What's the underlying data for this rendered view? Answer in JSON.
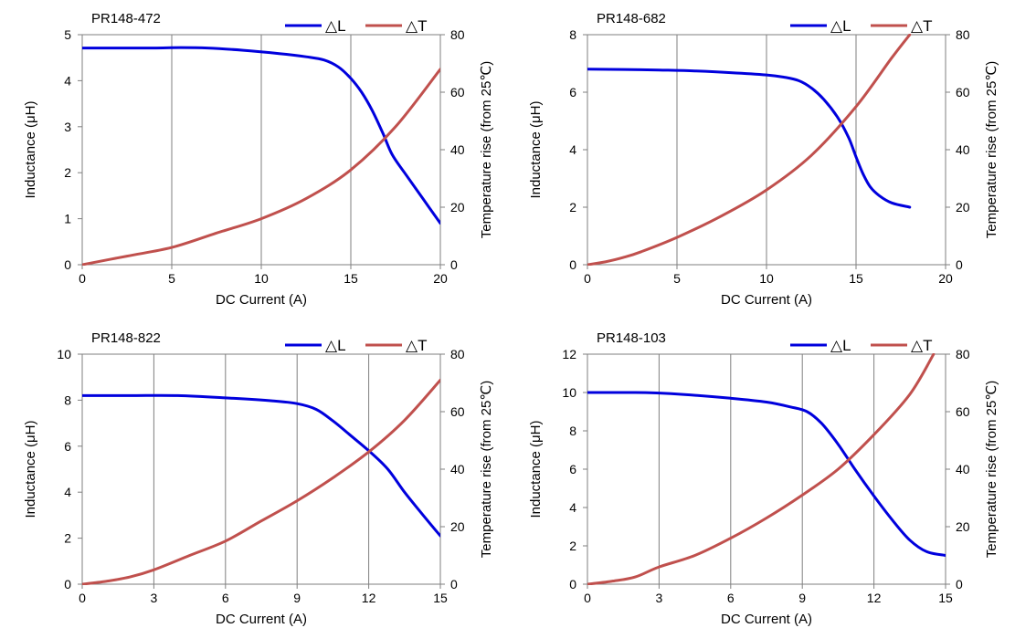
{
  "chart_data": [
    {
      "type": "line",
      "title": "PR148-472",
      "xlabel": "DC Current (A)",
      "ylabel": "Inductance (μH)",
      "y2label": "Temperature rise (from 25℃)",
      "xlim": [
        0,
        20
      ],
      "ylim": [
        0,
        5
      ],
      "y2lim": [
        0,
        80
      ],
      "xticks": [
        0,
        5,
        10,
        15,
        20
      ],
      "yticks": [
        0,
        1,
        2,
        3,
        4,
        5
      ],
      "y2ticks": [
        0,
        20,
        40,
        60,
        80
      ],
      "grid": "vertical",
      "legend": "top-right",
      "series": [
        {
          "name": "△L",
          "axis": "left",
          "color": "#0000dd",
          "x": [
            0,
            2,
            4,
            5.5,
            7,
            9,
            11,
            12.5,
            13.5,
            14.3,
            15,
            15.6,
            16.2,
            16.8,
            17.3,
            18,
            19,
            20
          ],
          "y": [
            4.71,
            4.71,
            4.71,
            4.72,
            4.71,
            4.66,
            4.59,
            4.52,
            4.45,
            4.3,
            4.05,
            3.75,
            3.35,
            2.85,
            2.4,
            2.0,
            1.45,
            0.9
          ]
        },
        {
          "name": "△T",
          "axis": "right",
          "color": "#c0504d",
          "x": [
            0,
            2.5,
            5,
            7.5,
            10,
            12.5,
            15,
            17.5,
            20
          ],
          "y": [
            0,
            3,
            6,
            11,
            16,
            23,
            33,
            48,
            68
          ]
        }
      ]
    },
    {
      "type": "line",
      "title": "PR148-682",
      "xlabel": "DC Current (A)",
      "ylabel": "Inductance (μH)",
      "y2label": "Temperature rise (from 25℃)",
      "xlim": [
        0,
        20
      ],
      "ylim": [
        0,
        8
      ],
      "y2lim": [
        0,
        80
      ],
      "xticks": [
        0,
        5,
        10,
        15,
        20
      ],
      "yticks": [
        0,
        2,
        4,
        6,
        8
      ],
      "y2ticks": [
        0,
        20,
        40,
        60,
        80
      ],
      "grid": "vertical",
      "legend": "top-right",
      "series": [
        {
          "name": "△L",
          "axis": "left",
          "color": "#0000dd",
          "x": [
            0,
            2,
            4,
            6,
            8,
            10,
            11,
            11.8,
            12.5,
            13.2,
            14,
            14.6,
            15,
            15.4,
            15.8,
            16.3,
            17,
            18
          ],
          "y": [
            6.8,
            6.79,
            6.77,
            6.74,
            6.68,
            6.6,
            6.52,
            6.4,
            6.15,
            5.75,
            5.1,
            4.4,
            3.75,
            3.15,
            2.7,
            2.4,
            2.15,
            2.0
          ]
        },
        {
          "name": "△T",
          "axis": "right",
          "color": "#c0504d",
          "x": [
            0,
            1,
            2,
            3,
            5,
            7.5,
            10,
            12.5,
            15,
            17,
            18
          ],
          "y": [
            0,
            1,
            2.5,
            4.5,
            9.5,
            17,
            26,
            38,
            55,
            72,
            80
          ]
        }
      ]
    },
    {
      "type": "line",
      "title": "PR148-822",
      "xlabel": "DC Current (A)",
      "ylabel": "Inductance (μH)",
      "y2label": "Temperature rise (from 25℃)",
      "xlim": [
        0,
        15
      ],
      "ylim": [
        0,
        10
      ],
      "y2lim": [
        0,
        80
      ],
      "xticks": [
        0,
        3,
        6,
        9,
        12,
        15
      ],
      "yticks": [
        0,
        2,
        4,
        6,
        8,
        10
      ],
      "y2ticks": [
        0,
        20,
        40,
        60,
        80
      ],
      "grid": "vertical",
      "legend": "top-right",
      "series": [
        {
          "name": "△L",
          "axis": "left",
          "color": "#0000dd",
          "x": [
            0,
            2,
            4,
            6,
            8,
            9,
            9.8,
            10.5,
            11.2,
            12,
            12.8,
            13.5,
            14.2,
            15
          ],
          "y": [
            8.2,
            8.2,
            8.2,
            8.1,
            7.97,
            7.85,
            7.6,
            7.1,
            6.5,
            5.8,
            5.0,
            4.0,
            3.1,
            2.1
          ]
        },
        {
          "name": "△T",
          "axis": "right",
          "color": "#c0504d",
          "x": [
            0,
            1,
            2,
            3,
            4.5,
            6,
            7.5,
            9,
            10.5,
            12,
            13.5,
            15
          ],
          "y": [
            0,
            1,
            2.5,
            5,
            10,
            15,
            22,
            29,
            37,
            46,
            57,
            71
          ]
        }
      ]
    },
    {
      "type": "line",
      "title": "PR148-103",
      "xlabel": "DC Current (A)",
      "ylabel": "Inductance (μH)",
      "y2label": "Temperature rise (from 25℃)",
      "xlim": [
        0,
        15
      ],
      "ylim": [
        0,
        12
      ],
      "y2lim": [
        0,
        80
      ],
      "xticks": [
        0,
        3,
        6,
        9,
        12,
        15
      ],
      "yticks": [
        0,
        2,
        4,
        6,
        8,
        10,
        12
      ],
      "y2ticks": [
        0,
        20,
        40,
        60,
        80
      ],
      "grid": "vertical",
      "legend": "top-right",
      "series": [
        {
          "name": "△L",
          "axis": "left",
          "color": "#0000dd",
          "x": [
            0,
            2,
            3,
            4,
            6,
            7.5,
            8.5,
            9.2,
            9.8,
            10.5,
            11.2,
            12,
            12.8,
            13.5,
            14.2,
            15
          ],
          "y": [
            10.0,
            10.0,
            9.97,
            9.9,
            9.7,
            9.5,
            9.25,
            9.0,
            8.4,
            7.3,
            6.0,
            4.6,
            3.3,
            2.3,
            1.7,
            1.5
          ]
        },
        {
          "name": "△T",
          "axis": "right",
          "color": "#c0504d",
          "x": [
            0,
            1,
            2,
            3,
            4.5,
            6,
            7.5,
            9,
            10.5,
            12,
            13.5,
            14.5
          ],
          "y": [
            0,
            1,
            2.5,
            6,
            10,
            16,
            23,
            31,
            40,
            52,
            66,
            80
          ]
        }
      ]
    }
  ]
}
